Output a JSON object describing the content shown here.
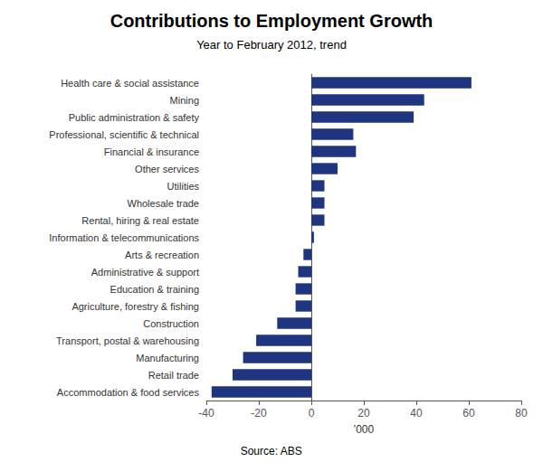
{
  "chart_data": {
    "type": "bar",
    "orientation": "horizontal",
    "title": "Contributions to Employment Growth",
    "subtitle": "Year to February 2012, trend",
    "annotations": [
      "Source: ABS"
    ],
    "xlabel": "'000",
    "categories": [
      "Health care & social assistance",
      "Mining",
      "Public administration & safety",
      "Professional, scientific & technical",
      "Financial & insurance",
      "Other services",
      "Utilities",
      "Wholesale trade",
      "Rental, hiring & real estate",
      "Information & telecommunications",
      "Arts & recreation",
      "Administrative & support",
      "Education & training",
      "Agriculture, forestry & fishing",
      "Construction",
      "Transport, postal & warehousing",
      "Manufacturing",
      "Retail trade",
      "Accommodation & food services"
    ],
    "values": [
      61,
      43,
      39,
      16,
      17,
      10,
      5,
      5,
      5,
      1,
      -3,
      -5,
      -6,
      -6,
      -13,
      -21,
      -26,
      -30,
      -38
    ],
    "color": "#1f3580",
    "xlim": [
      -40,
      80
    ],
    "xticks": [
      -40,
      -20,
      0,
      20,
      40,
      60,
      80
    ],
    "grid": false
  }
}
